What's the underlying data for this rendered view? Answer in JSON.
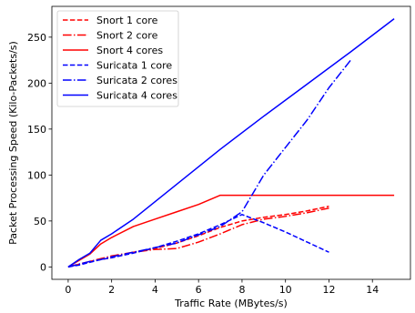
{
  "chart_data": {
    "type": "line",
    "title": "",
    "xlabel": "Traffic Rate (MBytes/s)",
    "ylabel": "Packet Processing Speed (Kilo-Packets/s)",
    "xlim": [
      -0.75,
      15.75
    ],
    "ylim": [
      -13.5,
      283.5
    ],
    "xticks": [
      0,
      2,
      4,
      6,
      8,
      10,
      12,
      14
    ],
    "yticks": [
      0,
      50,
      100,
      150,
      200,
      250
    ],
    "grid": false,
    "legend_position": "top-left",
    "series": [
      {
        "name": "Snort 1 core",
        "color": "#ff0000",
        "dash": "dashed",
        "x": [
          0,
          0.5,
          1,
          1.5,
          2,
          3,
          4,
          5,
          6,
          7,
          8,
          9,
          10,
          11,
          12
        ],
        "y": [
          0,
          3,
          6,
          8,
          10,
          16,
          20,
          26,
          34,
          43,
          50,
          54,
          57,
          61,
          66
        ]
      },
      {
        "name": "Snort 2 core",
        "color": "#ff0000",
        "dash": "dashdot",
        "x": [
          0,
          0.5,
          1,
          1.5,
          2,
          3,
          4,
          5,
          6,
          7,
          8,
          9,
          10,
          11,
          12
        ],
        "y": [
          0,
          3,
          6,
          9,
          12,
          16,
          19,
          20,
          27,
          36,
          46,
          52,
          55,
          59,
          64
        ]
      },
      {
        "name": "Snort 4 cores",
        "color": "#ff0000",
        "dash": "solid",
        "x": [
          0,
          0.5,
          1,
          1.5,
          2,
          3,
          4,
          5,
          6,
          7,
          8,
          15
        ],
        "y": [
          0,
          7,
          14,
          25,
          32,
          44,
          52,
          60,
          68,
          78,
          78,
          78
        ]
      },
      {
        "name": "Suricata 1 core",
        "color": "#0000ff",
        "dash": "dashed",
        "x": [
          0,
          0.5,
          1,
          1.5,
          2,
          3,
          4,
          5,
          6,
          7,
          8,
          9,
          10,
          11,
          12
        ],
        "y": [
          0,
          2,
          5,
          8,
          10,
          15,
          21,
          28,
          36,
          46,
          57,
          48,
          38,
          27,
          16
        ]
      },
      {
        "name": "Suricata 2 cores",
        "color": "#0000ff",
        "dash": "dashdot",
        "x": [
          0,
          0.5,
          1,
          1.5,
          2,
          3,
          4,
          5,
          6,
          7,
          8,
          9,
          10,
          11,
          12,
          13
        ],
        "y": [
          0,
          3,
          6,
          8,
          11,
          16,
          21,
          26,
          35,
          44,
          60,
          100,
          130,
          160,
          195,
          225
        ]
      },
      {
        "name": "Suricata 4 cores",
        "color": "#0000ff",
        "dash": "solid",
        "x": [
          0,
          0.5,
          1,
          1.5,
          2,
          3,
          5,
          7,
          9,
          11,
          13,
          15
        ],
        "y": [
          0,
          8,
          15,
          29,
          36,
          52,
          90,
          128,
          164,
          199,
          234,
          270
        ]
      }
    ]
  }
}
